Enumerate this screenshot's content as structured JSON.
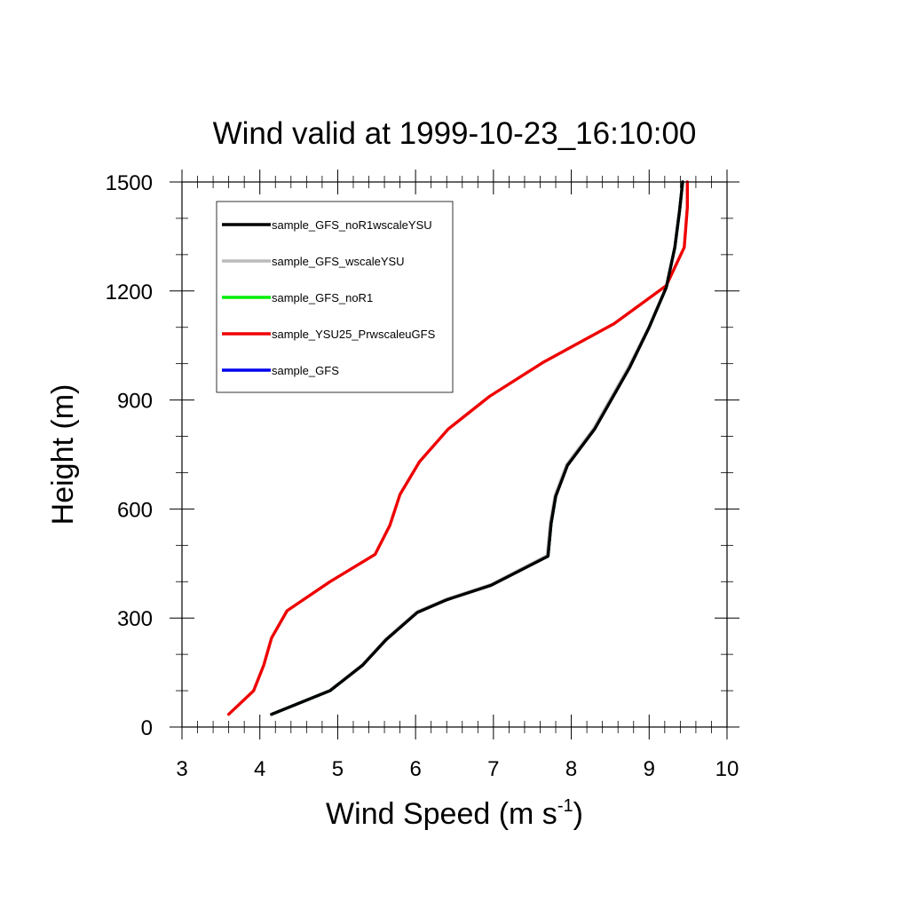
{
  "chart_data": {
    "type": "line",
    "title": "Wind valid at 1999-10-23_16:10:00",
    "xlabel": "Wind Speed (m s",
    "xlabel_superscript": "-1",
    "xlabel_suffix": ")",
    "ylabel": "Height (m)",
    "xlim": [
      3,
      10
    ],
    "ylim": [
      0,
      1500
    ],
    "xticks": [
      3,
      4,
      5,
      6,
      7,
      8,
      9,
      10
    ],
    "yticks": [
      0,
      300,
      600,
      900,
      1200,
      1500
    ],
    "legend_position": "top-left",
    "series": [
      {
        "name": "sample_GFS_noR1wscaleYSU",
        "color": "#000000",
        "points": [
          [
            4.15,
            35
          ],
          [
            4.9,
            100
          ],
          [
            5.32,
            170
          ],
          [
            5.62,
            240
          ],
          [
            6.02,
            315
          ],
          [
            6.4,
            350
          ],
          [
            6.97,
            390
          ],
          [
            7.7,
            470
          ],
          [
            7.74,
            560
          ],
          [
            7.8,
            635
          ],
          [
            7.95,
            720
          ],
          [
            8.3,
            820
          ],
          [
            8.75,
            990
          ],
          [
            9.0,
            1100
          ],
          [
            9.22,
            1210
          ],
          [
            9.33,
            1320
          ],
          [
            9.39,
            1420
          ],
          [
            9.43,
            1500
          ]
        ]
      },
      {
        "name": "sample_GFS_wscaleYSU",
        "color": "#bbbbbb",
        "points": [
          [
            4.15,
            35
          ],
          [
            4.9,
            100
          ],
          [
            5.32,
            172
          ],
          [
            5.62,
            242
          ],
          [
            6.02,
            317
          ],
          [
            6.4,
            352
          ],
          [
            6.97,
            392
          ],
          [
            7.69,
            472
          ],
          [
            7.73,
            562
          ],
          [
            7.79,
            637
          ],
          [
            7.94,
            722
          ],
          [
            8.29,
            822
          ],
          [
            8.74,
            992
          ],
          [
            9.0,
            1102
          ],
          [
            9.22,
            1210
          ],
          [
            9.33,
            1320
          ],
          [
            9.39,
            1420
          ],
          [
            9.43,
            1500
          ]
        ]
      },
      {
        "name": "sample_GFS_noR1",
        "color": "#00ee00",
        "points": [
          [
            4.15,
            35
          ],
          [
            4.9,
            100
          ],
          [
            5.32,
            171
          ],
          [
            5.62,
            241
          ],
          [
            6.02,
            316
          ],
          [
            6.4,
            351
          ],
          [
            6.97,
            391
          ],
          [
            7.7,
            471
          ],
          [
            7.74,
            561
          ],
          [
            7.8,
            636
          ],
          [
            7.95,
            721
          ],
          [
            8.3,
            821
          ],
          [
            8.75,
            991
          ],
          [
            9.0,
            1101
          ],
          [
            9.22,
            1210
          ],
          [
            9.33,
            1320
          ],
          [
            9.39,
            1420
          ],
          [
            9.43,
            1500
          ]
        ]
      },
      {
        "name": "sample_YSU25_PrwscaleuGFS",
        "color": "#ee0000",
        "points": [
          [
            3.6,
            35
          ],
          [
            3.92,
            100
          ],
          [
            4.05,
            170
          ],
          [
            4.15,
            245
          ],
          [
            4.35,
            320
          ],
          [
            4.9,
            400
          ],
          [
            5.48,
            475
          ],
          [
            5.67,
            555
          ],
          [
            5.8,
            640
          ],
          [
            6.05,
            730
          ],
          [
            6.42,
            820
          ],
          [
            6.95,
            910
          ],
          [
            7.65,
            1005
          ],
          [
            8.55,
            1110
          ],
          [
            9.22,
            1215
          ],
          [
            9.45,
            1320
          ],
          [
            9.49,
            1430
          ],
          [
            9.49,
            1500
          ]
        ]
      },
      {
        "name": "sample_GFS",
        "color": "#0000ee",
        "points": [
          [
            4.15,
            35
          ],
          [
            4.9,
            100
          ],
          [
            5.32,
            171
          ],
          [
            5.62,
            241
          ],
          [
            6.02,
            316
          ],
          [
            6.4,
            351
          ],
          [
            6.97,
            391
          ],
          [
            7.7,
            471
          ],
          [
            7.74,
            561
          ],
          [
            7.8,
            636
          ],
          [
            7.95,
            721
          ],
          [
            8.3,
            821
          ],
          [
            8.75,
            991
          ],
          [
            9.0,
            1101
          ],
          [
            9.22,
            1210
          ],
          [
            9.33,
            1320
          ],
          [
            9.39,
            1420
          ],
          [
            9.43,
            1500
          ]
        ]
      }
    ],
    "draw_order": [
      4,
      2,
      1,
      3,
      0
    ]
  }
}
